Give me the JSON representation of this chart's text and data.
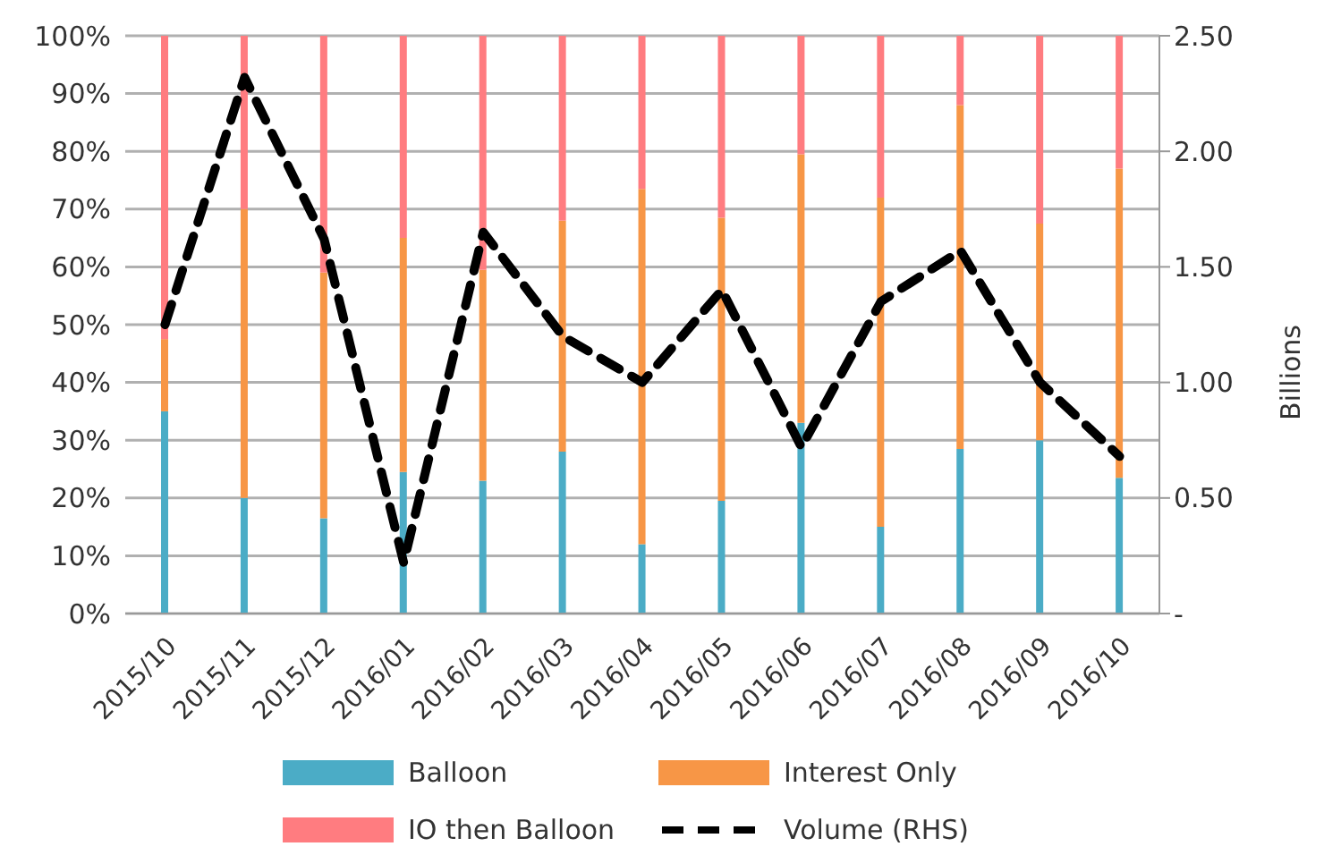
{
  "chart_data": {
    "type": "bar",
    "stacked": true,
    "categories": [
      "2015/10",
      "2015/11",
      "2015/12",
      "2016/01",
      "2016/02",
      "2016/03",
      "2016/04",
      "2016/05",
      "2016/06",
      "2016/07",
      "2016/08",
      "2016/09",
      "2016/10"
    ],
    "series": [
      {
        "name": "Balloon",
        "color": "#4bacc6",
        "values": [
          35,
          20,
          16.5,
          24.5,
          23,
          28,
          12,
          19.5,
          33,
          15,
          28.5,
          30,
          23.5
        ]
      },
      {
        "name": "Interest Only",
        "color": "#f79646",
        "values": [
          12.5,
          50,
          42.5,
          40.5,
          36.5,
          40,
          61.5,
          49,
          46.5,
          57,
          59.5,
          37.5,
          53.5
        ]
      },
      {
        "name": "IO then Balloon",
        "color": "#ff7c80",
        "values": [
          52.5,
          30,
          41,
          35,
          40.5,
          32,
          26.5,
          31.5,
          20.5,
          28,
          12,
          32.5,
          23
        ]
      },
      {
        "name": "Volume (RHS)",
        "type": "line",
        "axis": "y2",
        "color": "#000000",
        "line_style": "dashed",
        "marker": "none",
        "values": [
          1.25,
          2.32,
          1.62,
          0.22,
          1.65,
          1.2,
          1.0,
          1.4,
          0.72,
          1.35,
          1.57,
          1.0,
          0.68
        ]
      }
    ],
    "ylim": [
      0,
      100
    ],
    "yticks": [
      {
        "value": 0,
        "label": "0%"
      },
      {
        "value": 10,
        "label": "10%"
      },
      {
        "value": 20,
        "label": "20%"
      },
      {
        "value": 30,
        "label": "30%"
      },
      {
        "value": 40,
        "label": "40%"
      },
      {
        "value": 50,
        "label": "50%"
      },
      {
        "value": 60,
        "label": "60%"
      },
      {
        "value": 70,
        "label": "70%"
      },
      {
        "value": 80,
        "label": "80%"
      },
      {
        "value": 90,
        "label": "90%"
      },
      {
        "value": 100,
        "label": "100%"
      }
    ],
    "y2lim": [
      0,
      2.5
    ],
    "y2ticks": [
      {
        "value": 0,
        "label": "-"
      },
      {
        "value": 0.5,
        "label": "0.50"
      },
      {
        "value": 1,
        "label": "1.00"
      },
      {
        "value": 1.5,
        "label": "1.50"
      },
      {
        "value": 2,
        "label": "2.00"
      },
      {
        "value": 2.5,
        "label": "2.50"
      }
    ],
    "y2label": "Billions",
    "grid": "y",
    "legend": "bottom"
  }
}
